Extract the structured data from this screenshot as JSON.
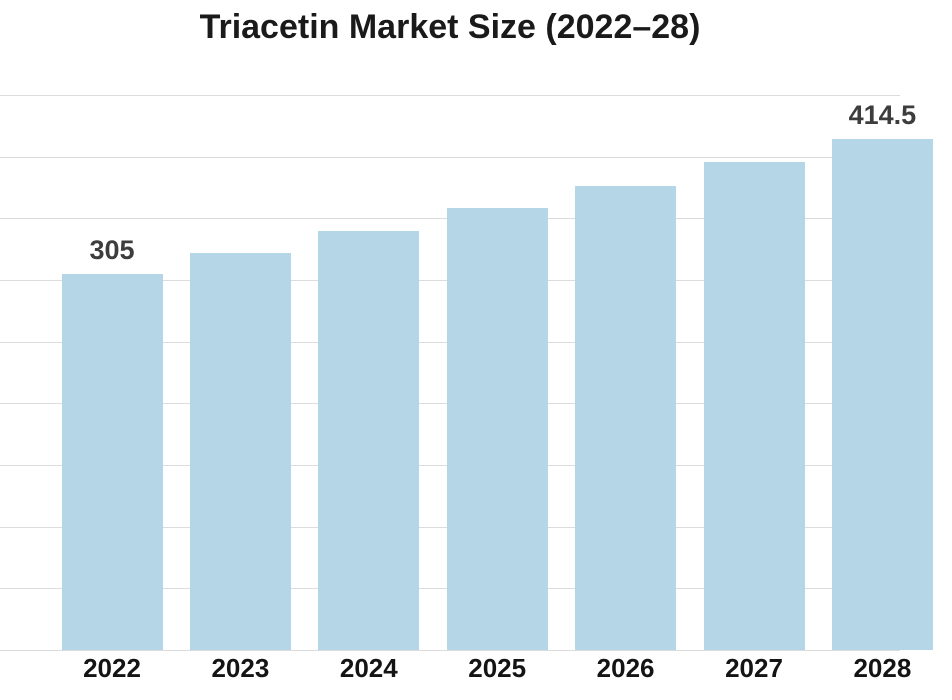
{
  "title": "Triacetin Market Size (2022–28)",
  "colors": {
    "background": "#ffffff",
    "bar_fill": "#b4d6e6",
    "gridline": "#dcdcdc",
    "title_text": "#1a1a1a",
    "value_label_text": "#3d3d3d",
    "axis_label_text": "#141414"
  },
  "chart_data": {
    "type": "bar",
    "title": "Triacetin Market Size (2022–28)",
    "categories": [
      "2022",
      "2023",
      "2024",
      "2025",
      "2026",
      "2027",
      "2028"
    ],
    "values": [
      305,
      322,
      340,
      358,
      376,
      396,
      414.5
    ],
    "data_labels": [
      "305",
      "",
      "",
      "",
      "",
      "",
      "414.5"
    ],
    "xlabel": "",
    "ylabel": "",
    "ylim": [
      0,
      450
    ],
    "gridline_step": 50,
    "gridline_count": 10,
    "grid": true,
    "legend": false
  }
}
